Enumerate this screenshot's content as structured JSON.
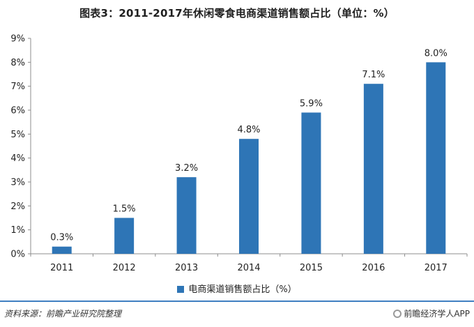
{
  "title": "图表3：2011-2017年休闲零食电商渠道销售额占比（单位：%）",
  "legend_label": "电商渠道销售额占比（%）",
  "source": "资料来源：前瞻产业研究院整理",
  "brand": "前瞻经济学人APP",
  "bar_color": "#2e75b6",
  "chart_data": {
    "type": "bar",
    "categories": [
      "2011",
      "2012",
      "2013",
      "2014",
      "2015",
      "2016",
      "2017"
    ],
    "series": [
      {
        "name": "电商渠道销售额占比（%）",
        "values": [
          0.3,
          1.5,
          3.2,
          4.8,
          5.9,
          7.1,
          8.0
        ]
      }
    ],
    "data_labels": [
      "0.3%",
      "1.5%",
      "3.2%",
      "4.8%",
      "5.9%",
      "7.1%",
      "8.0%"
    ],
    "yticks": [
      "0%",
      "1%",
      "2%",
      "3%",
      "4%",
      "5%",
      "6%",
      "7%",
      "8%",
      "9%"
    ],
    "ylim": [
      0,
      9
    ],
    "grid": false,
    "legend_position": "bottom"
  }
}
